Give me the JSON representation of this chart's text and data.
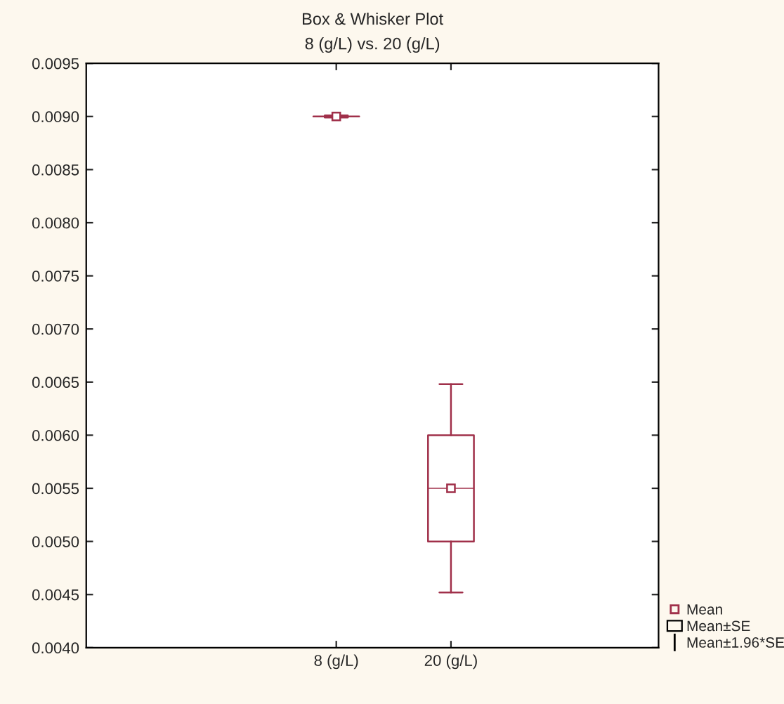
{
  "chart_data": {
    "type": "box",
    "title": "Box & Whisker Plot",
    "subtitle": "8 (g/L) vs. 20 (g/L)",
    "categories": [
      "8 (g/L)",
      "20 (g/L)"
    ],
    "series": [
      {
        "name": "Mean",
        "color": "#a0304a",
        "boxes": [
          {
            "low": 0.00899,
            "q1": 0.009,
            "median": 0.009,
            "q3": 0.009,
            "high": 0.00901,
            "mean": 0.009
          },
          {
            "low": 0.00452,
            "q1": 0.005,
            "median": 0.0055,
            "q3": 0.006,
            "high": 0.00648,
            "mean": 0.0055
          }
        ]
      }
    ],
    "annotations": [
      "Mean±SE",
      "Mean±1.96*SE"
    ],
    "ylim": [
      0.004,
      0.0095
    ],
    "yticks": [
      {
        "value": 0.004,
        "label": "0.0040"
      },
      {
        "value": 0.0045,
        "label": "0.0045"
      },
      {
        "value": 0.005,
        "label": "0.0050"
      },
      {
        "value": 0.0055,
        "label": "0.0055"
      },
      {
        "value": 0.006,
        "label": "0.0060"
      },
      {
        "value": 0.0065,
        "label": "0.0065"
      },
      {
        "value": 0.007,
        "label": "0.0070"
      },
      {
        "value": 0.0075,
        "label": "0.0075"
      },
      {
        "value": 0.008,
        "label": "0.0080"
      },
      {
        "value": 0.0085,
        "label": "0.0085"
      },
      {
        "value": 0.009,
        "label": "0.0090"
      },
      {
        "value": 0.0095,
        "label": "0.0095"
      }
    ],
    "grid": false,
    "legend": "bottom right",
    "marker": "square"
  }
}
